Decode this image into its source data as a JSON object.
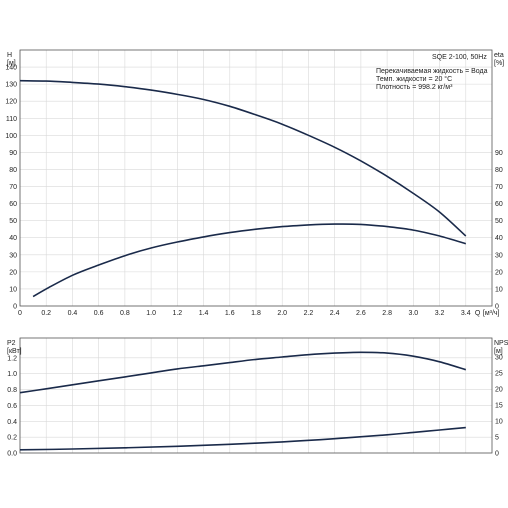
{
  "header": {
    "model": "SQE 2-100, 50Hz",
    "liquid": "Перекачиваемая жидкость = Вода",
    "temp": "Темп. жидкости = 20 °C",
    "density": "Плотность = 998.2 кг/м³"
  },
  "chart_data": [
    {
      "type": "line",
      "xlabel": "Q",
      "xunit": "[м³/ч]",
      "xlim": [
        0,
        3.6
      ],
      "xticks": [
        "0",
        "0.2",
        "0.4",
        "0.6",
        "0.8",
        "1.0",
        "1.2",
        "1.4",
        "1.6",
        "1.8",
        "2.0",
        "2.2",
        "2.4",
        "2.6",
        "2.8",
        "3.0",
        "3.2",
        "3.4"
      ],
      "left_axis": {
        "label": "H",
        "unit": "[м]",
        "lim": [
          0,
          150
        ],
        "ticks": [
          "0",
          "10",
          "20",
          "30",
          "40",
          "50",
          "60",
          "70",
          "80",
          "90",
          "100",
          "110",
          "120",
          "130",
          "140"
        ]
      },
      "right_axis": {
        "label": "eta",
        "unit": "[%]",
        "lim": [
          0,
          150
        ],
        "ticks": [
          "0",
          "10",
          "20",
          "30",
          "40",
          "50",
          "60",
          "70",
          "80",
          "90"
        ]
      },
      "grid": true,
      "series": [
        {
          "axis": "left",
          "x": [
            0,
            0.2,
            0.4,
            0.6,
            0.8,
            1.0,
            1.2,
            1.4,
            1.6,
            1.8,
            2.0,
            2.2,
            2.4,
            2.6,
            2.8,
            3.0,
            3.2,
            3.4
          ],
          "values": [
            132,
            131.8,
            131,
            130,
            128.5,
            126.5,
            124,
            121,
            117,
            112,
            106.5,
            100,
            93,
            85,
            76,
            66,
            55,
            41
          ]
        },
        {
          "axis": "right",
          "x": [
            0.1,
            0.2,
            0.4,
            0.6,
            0.8,
            1.0,
            1.2,
            1.4,
            1.6,
            1.8,
            2.0,
            2.2,
            2.4,
            2.6,
            2.8,
            3.0,
            3.2,
            3.4
          ],
          "values": [
            5.5,
            10,
            18,
            24,
            29.5,
            34,
            37.5,
            40.5,
            43,
            45,
            46.5,
            47.5,
            48,
            47.8,
            46.5,
            44.5,
            41,
            36.5
          ]
        }
      ]
    },
    {
      "type": "line",
      "xlim": [
        0,
        3.6
      ],
      "left_axis": {
        "label": "P2",
        "unit": "[кВт]",
        "lim": [
          0,
          1.45
        ],
        "ticks": [
          "0.0",
          "0.2",
          "0.4",
          "0.6",
          "0.8",
          "1.0",
          "1.2"
        ]
      },
      "right_axis": {
        "label": "NPSH",
        "unit": "[м]",
        "lim": [
          0,
          36
        ],
        "ticks": [
          "0",
          "5",
          "10",
          "15",
          "20",
          "25",
          "30"
        ]
      },
      "grid": true,
      "series": [
        {
          "axis": "left",
          "x": [
            0,
            0.2,
            0.4,
            0.6,
            0.8,
            1.0,
            1.2,
            1.4,
            1.6,
            1.8,
            2.0,
            2.2,
            2.4,
            2.6,
            2.8,
            3.0,
            3.2,
            3.4
          ],
          "values": [
            0.76,
            0.81,
            0.86,
            0.91,
            0.96,
            1.01,
            1.06,
            1.1,
            1.14,
            1.18,
            1.21,
            1.24,
            1.26,
            1.27,
            1.26,
            1.22,
            1.15,
            1.05
          ]
        },
        {
          "axis": "left",
          "x": [
            0,
            0.4,
            0.8,
            1.2,
            1.6,
            2.0,
            2.4,
            2.8,
            3.0,
            3.2,
            3.4
          ],
          "values": [
            0.04,
            0.05,
            0.065,
            0.085,
            0.11,
            0.14,
            0.18,
            0.23,
            0.26,
            0.29,
            0.32
          ]
        }
      ]
    }
  ]
}
